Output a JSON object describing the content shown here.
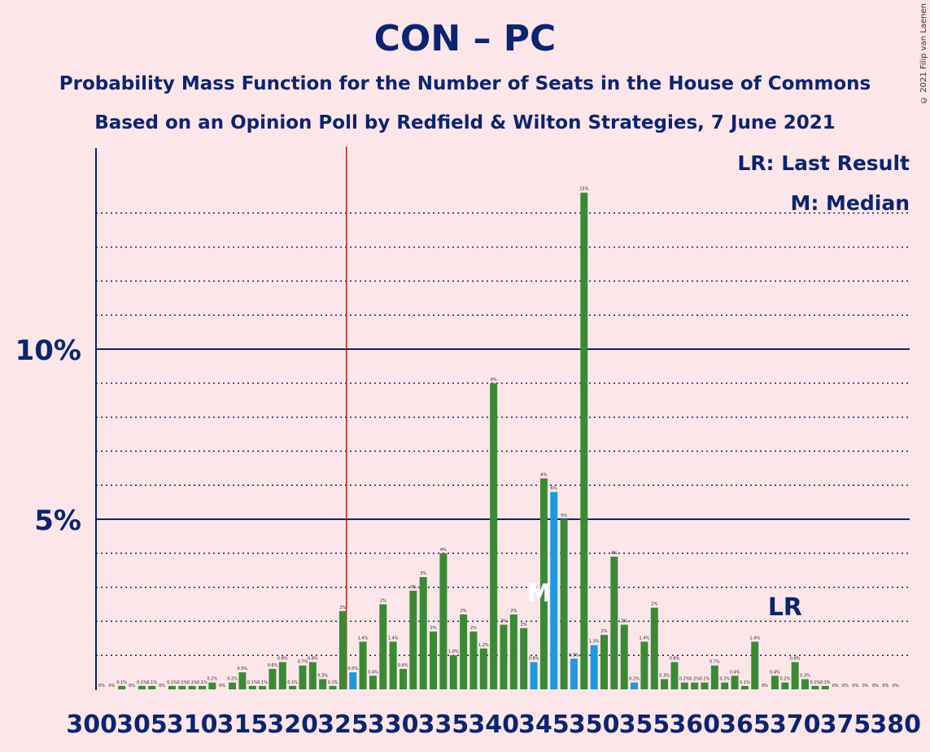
{
  "title": "CON – PC",
  "subtitle1": "Probability Mass Function for the Number of Seats in the House of Commons",
  "subtitle2": "Based on an Opinion Poll by Redfield & Wilton Strategies, 7 June 2021",
  "copyright": "© 2021 Filip van Laenen",
  "legend": {
    "lr": "LR: Last Result",
    "m": "M: Median"
  },
  "colors": {
    "background": "#fde6ea",
    "navy": "#0b2472",
    "green": "#3a8a35",
    "blue": "#1e98de",
    "red": "#cc0000"
  },
  "chart_data": {
    "type": "bar",
    "x_start": 301,
    "x_end": 380,
    "x_tick_labels": [
      "300",
      "305",
      "310",
      "315",
      "320",
      "325",
      "330",
      "335",
      "340",
      "345",
      "350",
      "355",
      "360",
      "365",
      "370",
      "375",
      "380"
    ],
    "y_tick_labels": [
      "5%",
      "10%"
    ],
    "ylim": [
      0,
      15.8
    ],
    "majority_line_x": 326,
    "median_x": 345,
    "median_label": "M",
    "last_result_x": 369,
    "last_result_label": "LR",
    "values": [
      0.0,
      0.0,
      0.1,
      0.0,
      0.1,
      0.1,
      0.0,
      0.1,
      0.1,
      0.1,
      0.1,
      0.2,
      0.0,
      0.2,
      0.5,
      0.1,
      0.1,
      0.6,
      0.8,
      0.1,
      0.7,
      0.8,
      0.3,
      0.1,
      2.3,
      0.5,
      1.4,
      0.4,
      2.5,
      1.4,
      0.6,
      2.9,
      3.3,
      1.7,
      4.0,
      1.0,
      2.2,
      1.7,
      1.2,
      9.0,
      1.9,
      2.2,
      1.8,
      0.8,
      6.2,
      5.8,
      5.0,
      0.9,
      14.6,
      1.3,
      1.6,
      3.9,
      1.9,
      0.2,
      1.4,
      2.4,
      0.3,
      0.8,
      0.2,
      0.2,
      0.2,
      0.7,
      0.2,
      0.4,
      0.1,
      1.4,
      0.0,
      0.4,
      0.2,
      0.8,
      0.3,
      0.1,
      0.1,
      0.0,
      0.0,
      0.0,
      0.0,
      0.0,
      0.0,
      0.0
    ],
    "data_labels": [
      "0%",
      "0%",
      "0.1%",
      "0%",
      "0.1%",
      "0.1%",
      "0%",
      "0.1%",
      "0.1%",
      "0.1%",
      "0.1%",
      "0.2%",
      "0%",
      "0.2%",
      "0.5%",
      "0.1%",
      "0.1%",
      "0.6%",
      "0.8%",
      "0.1%",
      "0.7%",
      "0.8%",
      "0.3%",
      "0.1%",
      "2%",
      "0.5%",
      "1.4%",
      "0.4%",
      "2%",
      "1.4%",
      "0.6%",
      "3%",
      "3%",
      "2%",
      "4%",
      "1.0%",
      "2%",
      "2%",
      "1.2%",
      "9%",
      "2%",
      "2%",
      "2%",
      "0.8%",
      "6%",
      "6%",
      "5%",
      "0.9%",
      "15%",
      "1.3%",
      "2%",
      "4%",
      "2%",
      "0.2%",
      "1.4%",
      "2%",
      "0.3%",
      "0.8%",
      "0.2%",
      "0.2%",
      "0.2%",
      "0.7%",
      "0.2%",
      "0.4%",
      "0.1%",
      "1.4%",
      "0%",
      "0.4%",
      "0.2%",
      "0.8%",
      "0.3%",
      "0.1%",
      "0.1%",
      "0%",
      "0%",
      "0%",
      "0%",
      "0%",
      "0%",
      "0%"
    ],
    "blue_seats": [
      326,
      344,
      346,
      348,
      350,
      354
    ],
    "blue_range_start": 326,
    "blue_range_end": 355
  }
}
